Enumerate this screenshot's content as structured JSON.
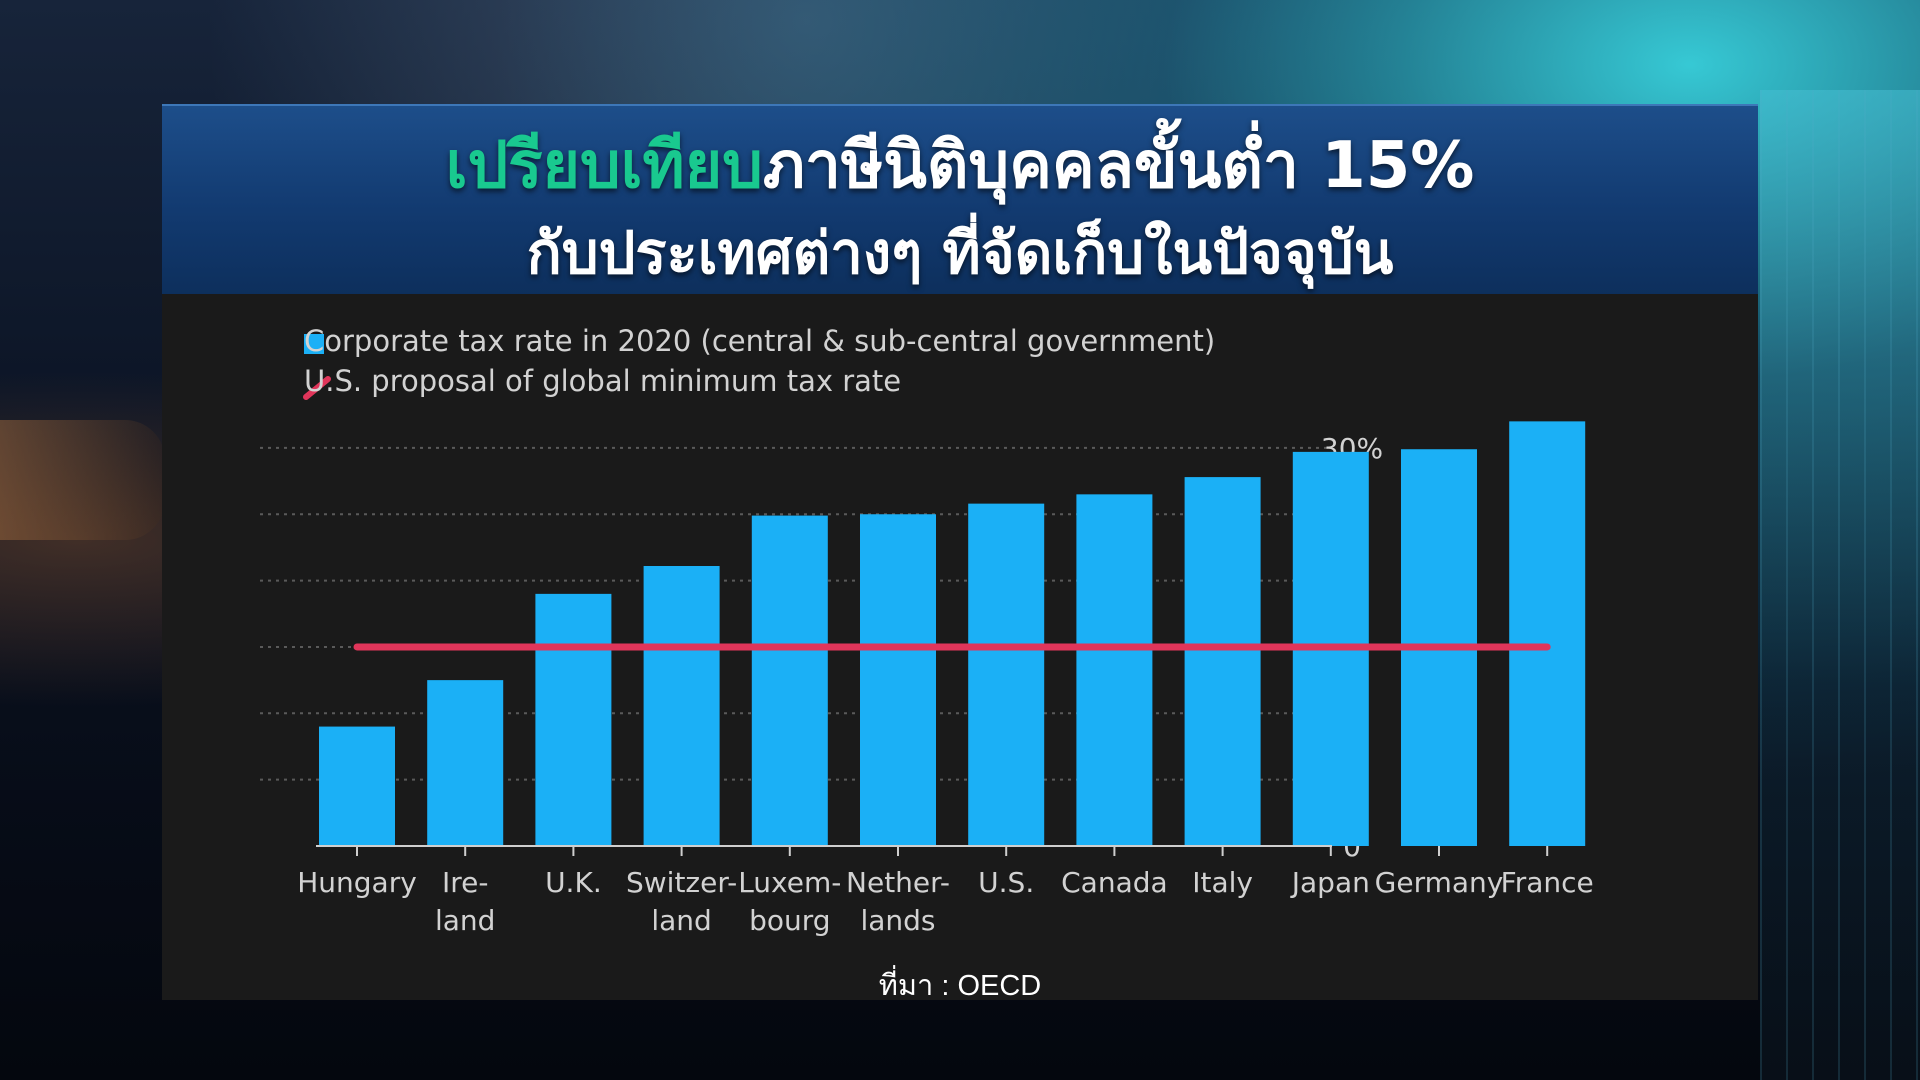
{
  "title": {
    "line1_highlight": "เปรียบเทียบ",
    "line1_rest": "ภาษีนิติบุคคลขั้นต่ำ 15%",
    "line2": "กับประเทศต่างๆ  ที่จัดเก็บในปัจจุบัน"
  },
  "source": "ที่มา : OECD",
  "colors": {
    "bar": "#1bb0f6",
    "line": "#e0355a",
    "title_highlight": "#19c98f",
    "banner": "#123a70"
  },
  "chart_data": {
    "type": "bar",
    "legend": [
      "Corporate tax rate in 2020 (central & sub-central government)",
      "U.S. proposal of global minimum tax rate"
    ],
    "categories": [
      [
        "Hungary"
      ],
      [
        "Ire-",
        "land"
      ],
      [
        "U.K."
      ],
      [
        "Switzer-",
        "land"
      ],
      [
        "Luxem-",
        "bourg"
      ],
      [
        "Nether-",
        "lands"
      ],
      [
        "U.S."
      ],
      [
        "Canada"
      ],
      [
        "Italy"
      ],
      [
        "Japan"
      ],
      [
        "Germany"
      ],
      [
        "France"
      ]
    ],
    "series": [
      {
        "name": "Corporate tax rate in 2020 (central & sub-central government)",
        "values": [
          9,
          12.5,
          19,
          21.1,
          24.9,
          25,
          25.8,
          26.5,
          27.8,
          29.7,
          29.9,
          32
        ]
      }
    ],
    "reference_line": {
      "name": "U.S. proposal of global minimum tax rate",
      "value": 15
    },
    "y_ticks": [
      "0",
      "5",
      "10",
      "15",
      "20",
      "25",
      "30%"
    ],
    "y_tick_values": [
      0,
      5,
      10,
      15,
      20,
      25,
      30
    ],
    "ylim": [
      0,
      32
    ],
    "grid": true,
    "y_axis_side": "right"
  }
}
